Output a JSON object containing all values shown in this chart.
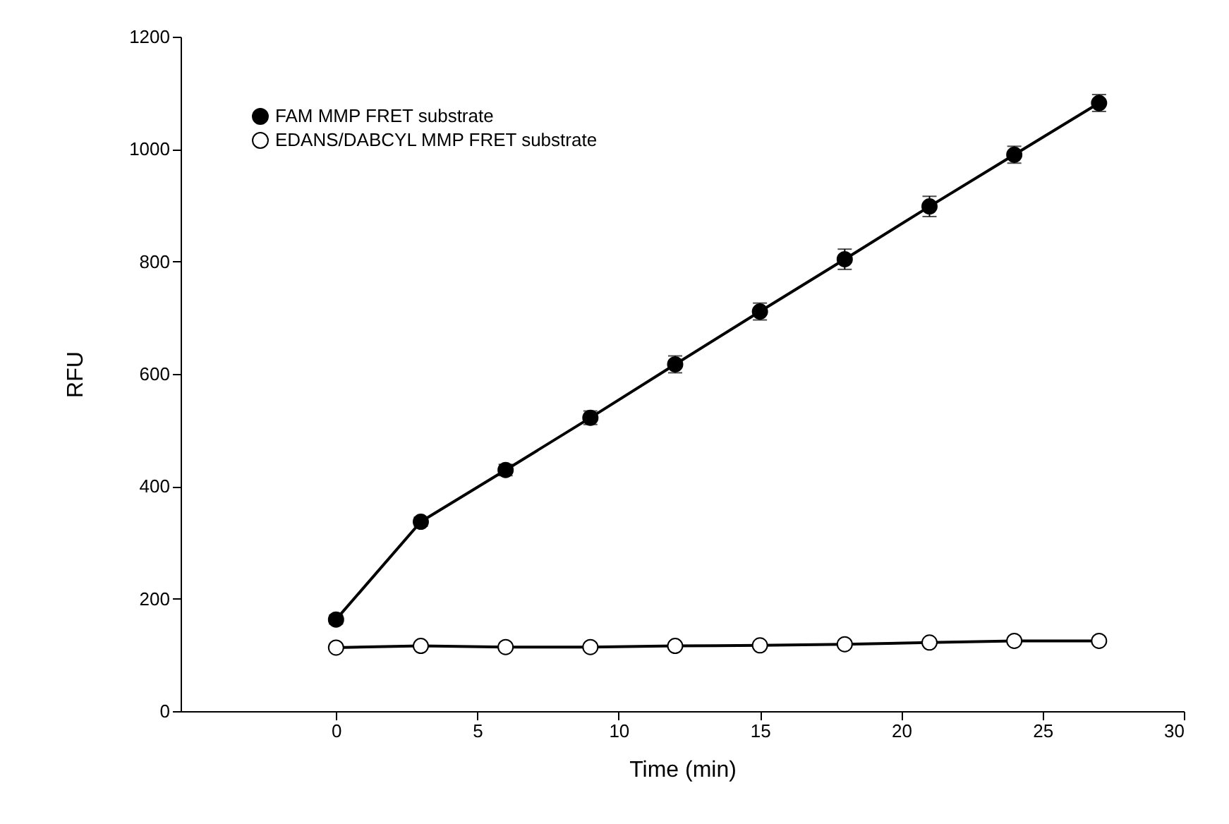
{
  "chart_data": {
    "type": "line",
    "xlabel": "Time (min)",
    "ylabel": "RFU",
    "x": [
      0,
      3,
      6,
      9,
      12,
      15,
      18,
      21,
      24,
      27
    ],
    "series": [
      {
        "name": "FAM MMP FRET substrate",
        "color": "#000000",
        "values": [
          163,
          337,
          429,
          522,
          617,
          711,
          804,
          898,
          990,
          1082
        ],
        "errors": [
          8,
          8,
          10,
          12,
          15,
          15,
          18,
          18,
          15,
          15
        ]
      },
      {
        "name": "EDANS/DABCYL MMP FRET substrate",
        "color": "#ffffff",
        "values": [
          113,
          116,
          114,
          114,
          116,
          117,
          119,
          122,
          125,
          125
        ],
        "errors": [
          null,
          null,
          null,
          null,
          null,
          null,
          null,
          null,
          null,
          null
        ]
      }
    ],
    "xlim": [
      -5.5,
      30
    ],
    "xticks": [
      0,
      5,
      10,
      15,
      20,
      25,
      30
    ],
    "ylim": [
      0,
      1200
    ],
    "yticks": [
      0,
      200,
      400,
      600,
      800,
      1000,
      1200
    ],
    "marker": "circle",
    "line_style": "solid",
    "grid": false,
    "legend": "top left"
  }
}
